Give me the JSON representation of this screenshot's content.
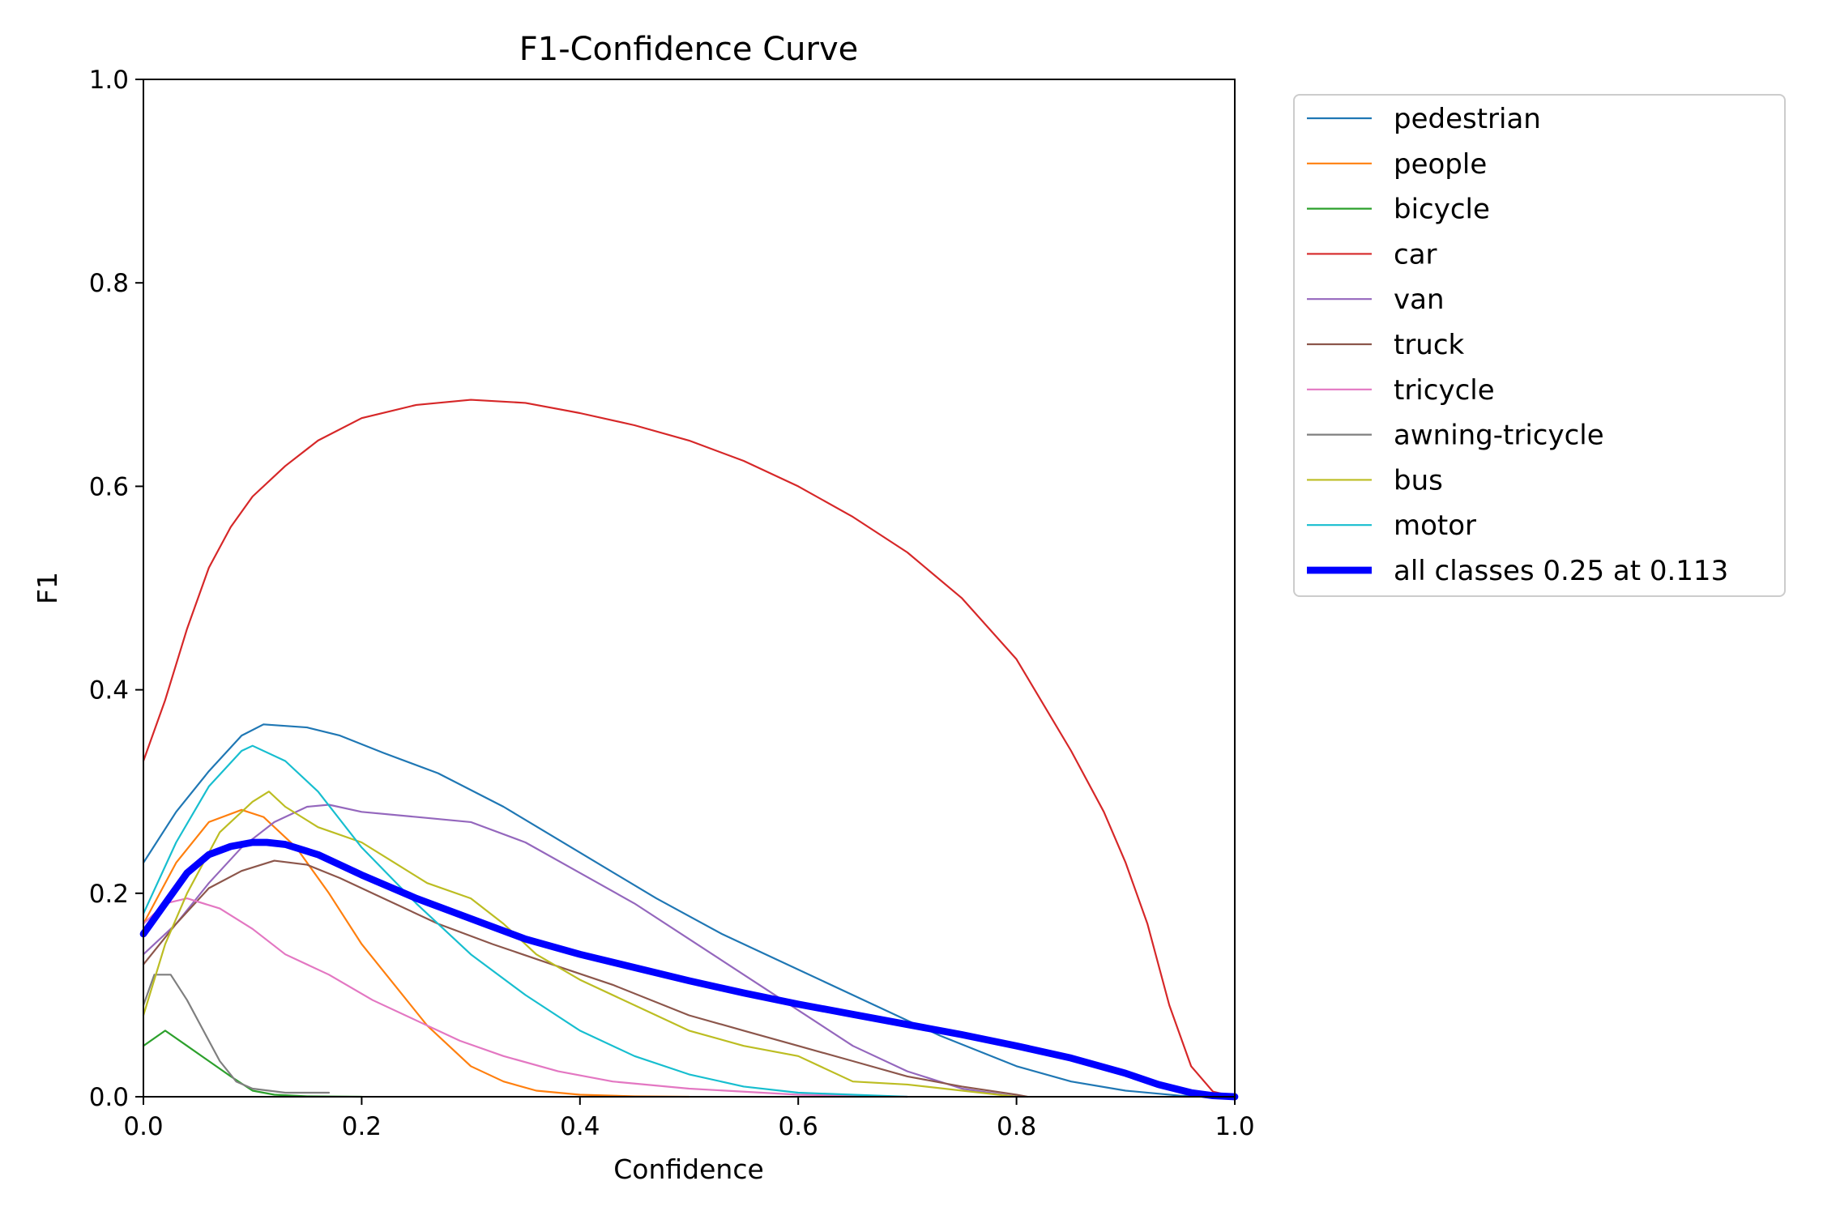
{
  "chart_data": {
    "type": "line",
    "title": "F1-Confidence Curve",
    "xlabel": "Confidence",
    "ylabel": "F1",
    "xlim": [
      0.0,
      1.0
    ],
    "ylim": [
      0.0,
      1.0
    ],
    "xticks": [
      "0.0",
      "0.2",
      "0.4",
      "0.6",
      "0.8",
      "1.0"
    ],
    "yticks": [
      "0.0",
      "0.2",
      "0.4",
      "0.6",
      "0.8",
      "1.0"
    ],
    "grid": false,
    "legend_position": "outside upper right",
    "series": [
      {
        "name": "pedestrian",
        "color": "#1f77b4",
        "width": 1.5,
        "x": [
          0,
          0.03,
          0.06,
          0.09,
          0.11,
          0.15,
          0.18,
          0.22,
          0.27,
          0.33,
          0.4,
          0.47,
          0.53,
          0.6,
          0.67,
          0.73,
          0.8,
          0.85,
          0.9,
          0.95,
          1.0
        ],
        "y": [
          0.23,
          0.28,
          0.32,
          0.355,
          0.366,
          0.363,
          0.355,
          0.338,
          0.318,
          0.285,
          0.24,
          0.195,
          0.16,
          0.125,
          0.09,
          0.06,
          0.03,
          0.015,
          0.006,
          0.001,
          0.0
        ]
      },
      {
        "name": "people",
        "color": "#ff7f0e",
        "width": 1.5,
        "x": [
          0,
          0.03,
          0.06,
          0.09,
          0.11,
          0.14,
          0.17,
          0.2,
          0.23,
          0.26,
          0.3,
          0.33,
          0.36,
          0.4,
          0.45,
          0.5
        ],
        "y": [
          0.17,
          0.23,
          0.27,
          0.282,
          0.275,
          0.245,
          0.2,
          0.15,
          0.11,
          0.07,
          0.03,
          0.015,
          0.006,
          0.002,
          0.0005,
          0.0
        ]
      },
      {
        "name": "bicycle",
        "color": "#2ca02c",
        "width": 1.5,
        "x": [
          0,
          0.02,
          0.04,
          0.06,
          0.08,
          0.1,
          0.12,
          0.15,
          0.2
        ],
        "y": [
          0.05,
          0.065,
          0.05,
          0.035,
          0.02,
          0.006,
          0.002,
          0.0005,
          0.0
        ]
      },
      {
        "name": "car",
        "color": "#d62728",
        "width": 1.5,
        "x": [
          0,
          0.02,
          0.04,
          0.06,
          0.08,
          0.1,
          0.13,
          0.16,
          0.2,
          0.25,
          0.3,
          0.35,
          0.4,
          0.45,
          0.5,
          0.55,
          0.6,
          0.65,
          0.7,
          0.75,
          0.8,
          0.85,
          0.88,
          0.9,
          0.92,
          0.94,
          0.96,
          0.98,
          1.0
        ],
        "y": [
          0.33,
          0.39,
          0.46,
          0.52,
          0.56,
          0.59,
          0.62,
          0.645,
          0.667,
          0.68,
          0.685,
          0.682,
          0.672,
          0.66,
          0.645,
          0.625,
          0.6,
          0.57,
          0.535,
          0.49,
          0.43,
          0.34,
          0.28,
          0.23,
          0.17,
          0.09,
          0.03,
          0.005,
          0.0
        ]
      },
      {
        "name": "van",
        "color": "#9467bd",
        "width": 1.5,
        "x": [
          0,
          0.03,
          0.06,
          0.09,
          0.12,
          0.15,
          0.17,
          0.2,
          0.25,
          0.3,
          0.35,
          0.4,
          0.45,
          0.5,
          0.55,
          0.6,
          0.65,
          0.7,
          0.75,
          0.8
        ],
        "y": [
          0.14,
          0.17,
          0.21,
          0.245,
          0.27,
          0.285,
          0.287,
          0.28,
          0.275,
          0.27,
          0.25,
          0.22,
          0.19,
          0.155,
          0.12,
          0.085,
          0.05,
          0.025,
          0.008,
          0.0
        ]
      },
      {
        "name": "truck",
        "color": "#8c564b",
        "width": 1.5,
        "x": [
          0,
          0.03,
          0.06,
          0.09,
          0.12,
          0.15,
          0.18,
          0.22,
          0.27,
          0.32,
          0.38,
          0.43,
          0.5,
          0.55,
          0.6,
          0.65,
          0.7,
          0.75,
          0.8,
          0.81
        ],
        "y": [
          0.13,
          0.17,
          0.205,
          0.222,
          0.232,
          0.228,
          0.215,
          0.195,
          0.17,
          0.15,
          0.128,
          0.11,
          0.08,
          0.065,
          0.05,
          0.035,
          0.02,
          0.01,
          0.002,
          0.0
        ]
      },
      {
        "name": "tricycle",
        "color": "#e377c2",
        "width": 1.5,
        "x": [
          0,
          0.02,
          0.04,
          0.07,
          0.1,
          0.13,
          0.17,
          0.21,
          0.25,
          0.29,
          0.33,
          0.38,
          0.43,
          0.5,
          0.6,
          0.7
        ],
        "y": [
          0.17,
          0.19,
          0.195,
          0.185,
          0.165,
          0.14,
          0.12,
          0.095,
          0.075,
          0.055,
          0.04,
          0.025,
          0.015,
          0.008,
          0.002,
          0.0
        ]
      },
      {
        "name": "awning-tricycle",
        "color": "#7f7f7f",
        "width": 1.5,
        "x": [
          0,
          0.01,
          0.025,
          0.04,
          0.055,
          0.07,
          0.085,
          0.1,
          0.13,
          0.17
        ],
        "y": [
          0.09,
          0.12,
          0.12,
          0.095,
          0.065,
          0.035,
          0.015,
          0.008,
          0.004,
          0.004
        ]
      },
      {
        "name": "bus",
        "color": "#bcbd22",
        "width": 1.5,
        "x": [
          0,
          0.02,
          0.04,
          0.07,
          0.1,
          0.115,
          0.13,
          0.16,
          0.2,
          0.23,
          0.26,
          0.3,
          0.33,
          0.36,
          0.4,
          0.45,
          0.5,
          0.55,
          0.6,
          0.65,
          0.7,
          0.8
        ],
        "y": [
          0.08,
          0.15,
          0.2,
          0.26,
          0.29,
          0.3,
          0.285,
          0.265,
          0.25,
          0.23,
          0.21,
          0.195,
          0.17,
          0.14,
          0.115,
          0.09,
          0.065,
          0.05,
          0.04,
          0.015,
          0.012,
          0.0
        ]
      },
      {
        "name": "motor",
        "color": "#17becf",
        "width": 1.5,
        "x": [
          0,
          0.03,
          0.06,
          0.09,
          0.1,
          0.13,
          0.16,
          0.2,
          0.25,
          0.3,
          0.35,
          0.4,
          0.45,
          0.5,
          0.55,
          0.6,
          0.7
        ],
        "y": [
          0.18,
          0.25,
          0.305,
          0.34,
          0.345,
          0.33,
          0.3,
          0.245,
          0.19,
          0.14,
          0.1,
          0.065,
          0.04,
          0.022,
          0.01,
          0.004,
          0.0
        ]
      },
      {
        "name": "all classes 0.25 at 0.113",
        "color": "#0000ff",
        "width": 6,
        "x": [
          0,
          0.02,
          0.04,
          0.06,
          0.08,
          0.1,
          0.113,
          0.13,
          0.16,
          0.2,
          0.25,
          0.3,
          0.35,
          0.4,
          0.45,
          0.5,
          0.55,
          0.6,
          0.65,
          0.7,
          0.75,
          0.8,
          0.85,
          0.9,
          0.93,
          0.96,
          0.98,
          1.0
        ],
        "y": [
          0.16,
          0.19,
          0.22,
          0.238,
          0.246,
          0.25,
          0.25,
          0.248,
          0.238,
          0.218,
          0.195,
          0.175,
          0.155,
          0.14,
          0.127,
          0.114,
          0.102,
          0.091,
          0.081,
          0.071,
          0.061,
          0.05,
          0.038,
          0.023,
          0.012,
          0.004,
          0.001,
          0.0
        ]
      }
    ]
  }
}
